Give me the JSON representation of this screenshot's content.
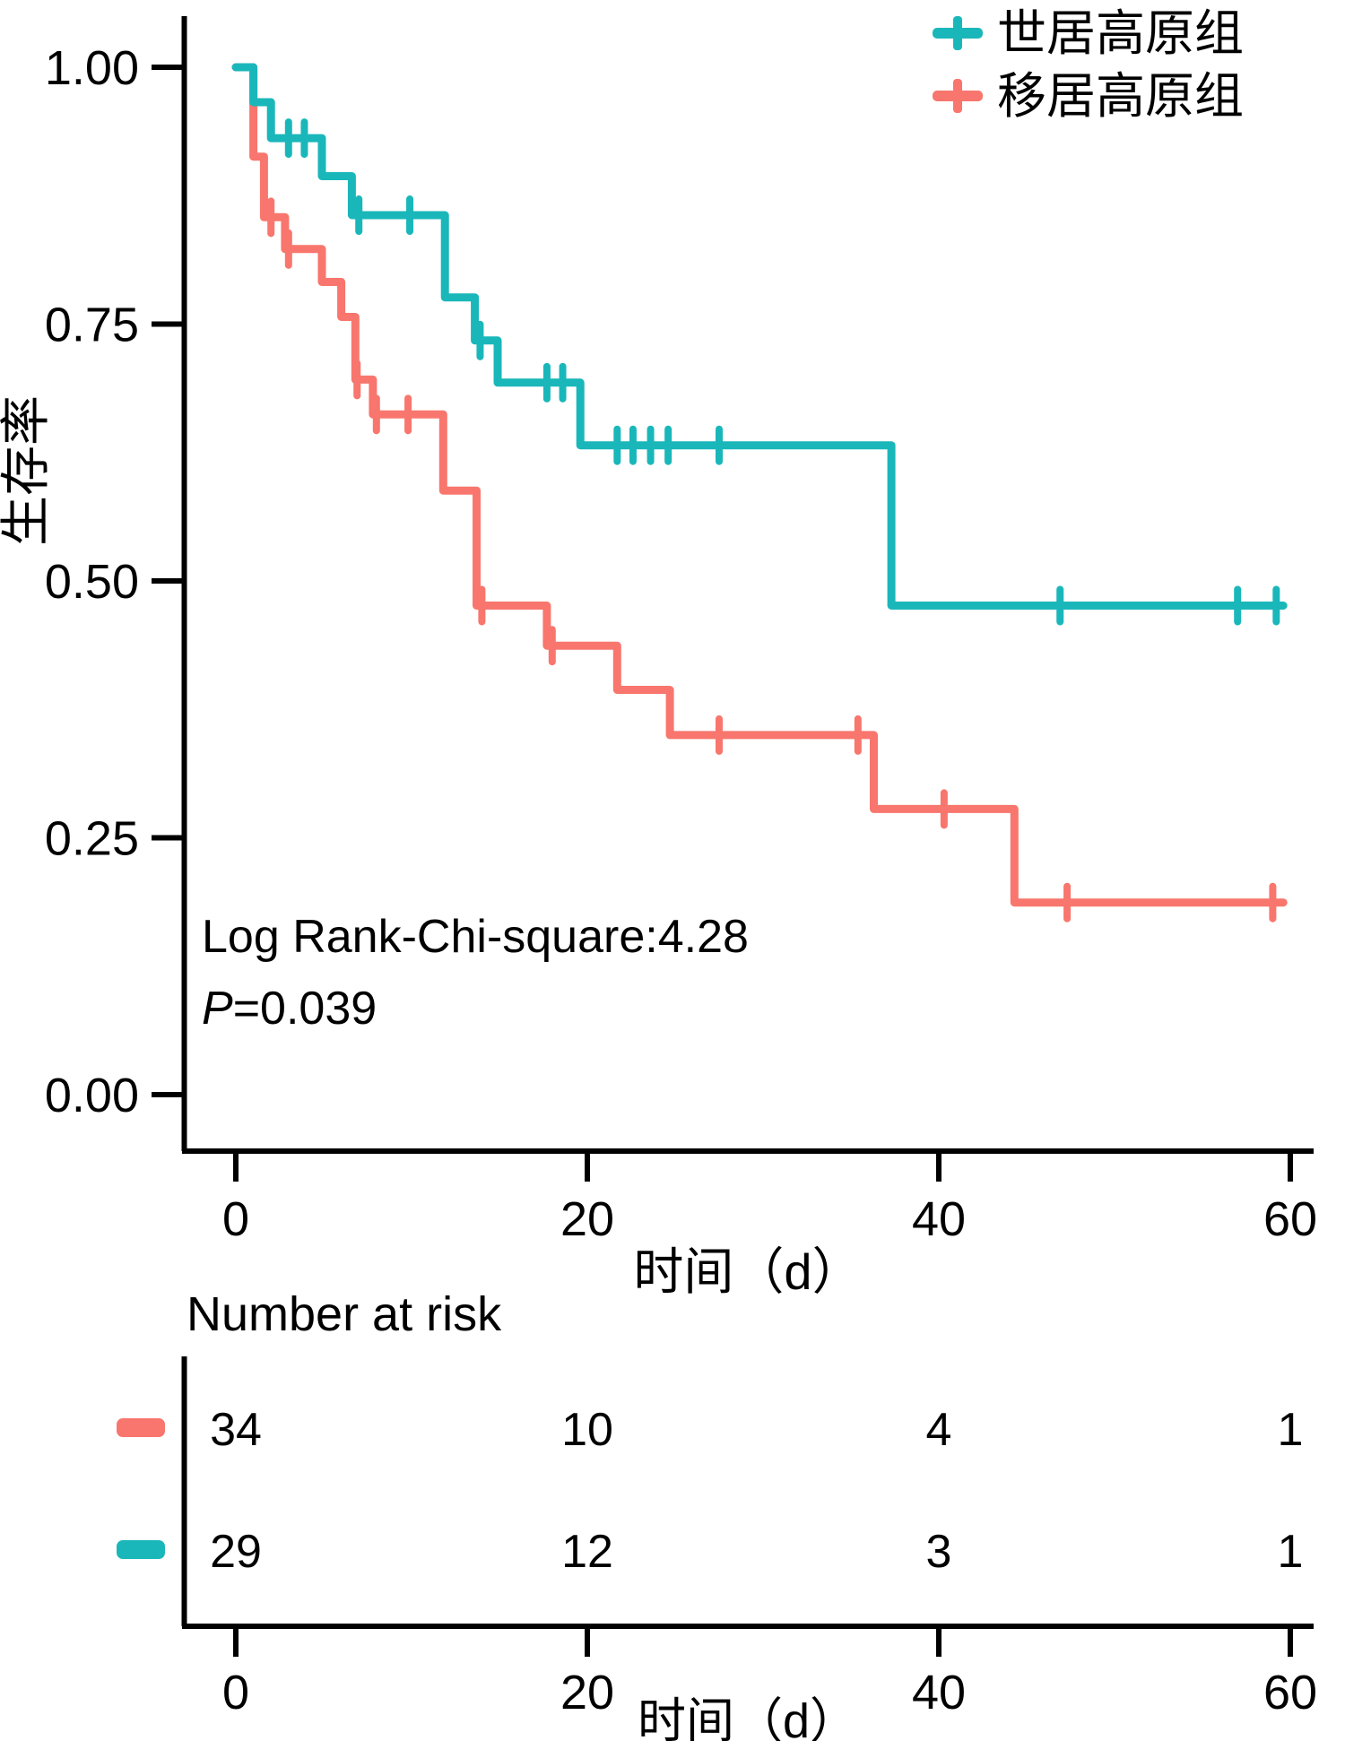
{
  "figure": {
    "background": "#ffffff",
    "text_color": "#000000"
  },
  "chart_data": {
    "type": "line",
    "subtype": "kaplan-meier-step",
    "title": "",
    "xlabel": "时间（d）",
    "ylabel": "生存率",
    "xlim": [
      0,
      60
    ],
    "xticks": [
      0,
      20,
      40,
      60
    ],
    "ylim": [
      0,
      1
    ],
    "yticks": [
      {
        "value": 1.0,
        "label": "1.00"
      },
      {
        "value": 0.75,
        "label": "0.75"
      },
      {
        "value": 0.5,
        "label": "0.50"
      },
      {
        "value": 0.25,
        "label": "0.25"
      },
      {
        "value": 0.0,
        "label": "0.00"
      }
    ],
    "grid": false,
    "legend_position": "top-right",
    "annotation": {
      "stat_line": "Log Rank-Chi-square:4.28",
      "p_label": "P",
      "p_rest": "=0.039"
    },
    "series": [
      {
        "name": "移居高原组",
        "color": "#f8766d",
        "start": [
          0,
          1.0
        ],
        "end_time": 59.6,
        "steps": [
          [
            1.0,
            0.913
          ],
          [
            1.6,
            0.854
          ],
          [
            2.8,
            0.823
          ],
          [
            4.9,
            0.791
          ],
          [
            6.0,
            0.757
          ],
          [
            6.8,
            0.696
          ],
          [
            7.8,
            0.662
          ],
          [
            11.8,
            0.588
          ],
          [
            13.7,
            0.476
          ],
          [
            17.7,
            0.437
          ],
          [
            21.7,
            0.394
          ],
          [
            24.7,
            0.35
          ],
          [
            36.3,
            0.278
          ],
          [
            44.3,
            0.187
          ]
        ],
        "censors": [
          [
            2.0,
            0.854
          ],
          [
            3.0,
            0.823
          ],
          [
            6.9,
            0.696
          ],
          [
            8.0,
            0.662
          ],
          [
            9.8,
            0.662
          ],
          [
            14.0,
            0.476
          ],
          [
            18.0,
            0.437
          ],
          [
            27.5,
            0.35
          ],
          [
            35.4,
            0.35
          ],
          [
            40.3,
            0.278
          ],
          [
            47.3,
            0.187
          ],
          [
            59.0,
            0.187
          ]
        ]
      },
      {
        "name": "世居高原组",
        "color": "#1ab7ba",
        "start": [
          0,
          1.0
        ],
        "end_time": 59.6,
        "steps": [
          [
            1.0,
            0.966
          ],
          [
            2.0,
            0.931
          ],
          [
            4.9,
            0.894
          ],
          [
            6.6,
            0.856
          ],
          [
            11.9,
            0.776
          ],
          [
            13.6,
            0.734
          ],
          [
            14.9,
            0.693
          ],
          [
            19.6,
            0.632
          ],
          [
            37.3,
            0.476
          ]
        ],
        "censors": [
          [
            3.0,
            0.931
          ],
          [
            3.9,
            0.931
          ],
          [
            7.0,
            0.856
          ],
          [
            9.9,
            0.856
          ],
          [
            13.9,
            0.734
          ],
          [
            17.7,
            0.693
          ],
          [
            18.6,
            0.693
          ],
          [
            21.7,
            0.632
          ],
          [
            22.6,
            0.632
          ],
          [
            23.6,
            0.632
          ],
          [
            24.6,
            0.632
          ],
          [
            27.5,
            0.632
          ],
          [
            46.9,
            0.476
          ],
          [
            57.0,
            0.476
          ],
          [
            59.2,
            0.476
          ]
        ]
      }
    ],
    "legend": [
      {
        "label": "世居高原组",
        "color": "#1ab7ba"
      },
      {
        "label": "移居高原组",
        "color": "#f8766d"
      }
    ],
    "number_at_risk": {
      "title": "Number at risk",
      "times": [
        0,
        20,
        40,
        60
      ],
      "xlabel": "时间（d）",
      "rows": [
        {
          "group": "移居高原组",
          "color": "#f8766d",
          "values": [
            "34",
            "10",
            "4",
            "1"
          ]
        },
        {
          "group": "世居高原组",
          "color": "#1ab7ba",
          "values": [
            "29",
            "12",
            "3",
            "1"
          ]
        }
      ]
    }
  }
}
